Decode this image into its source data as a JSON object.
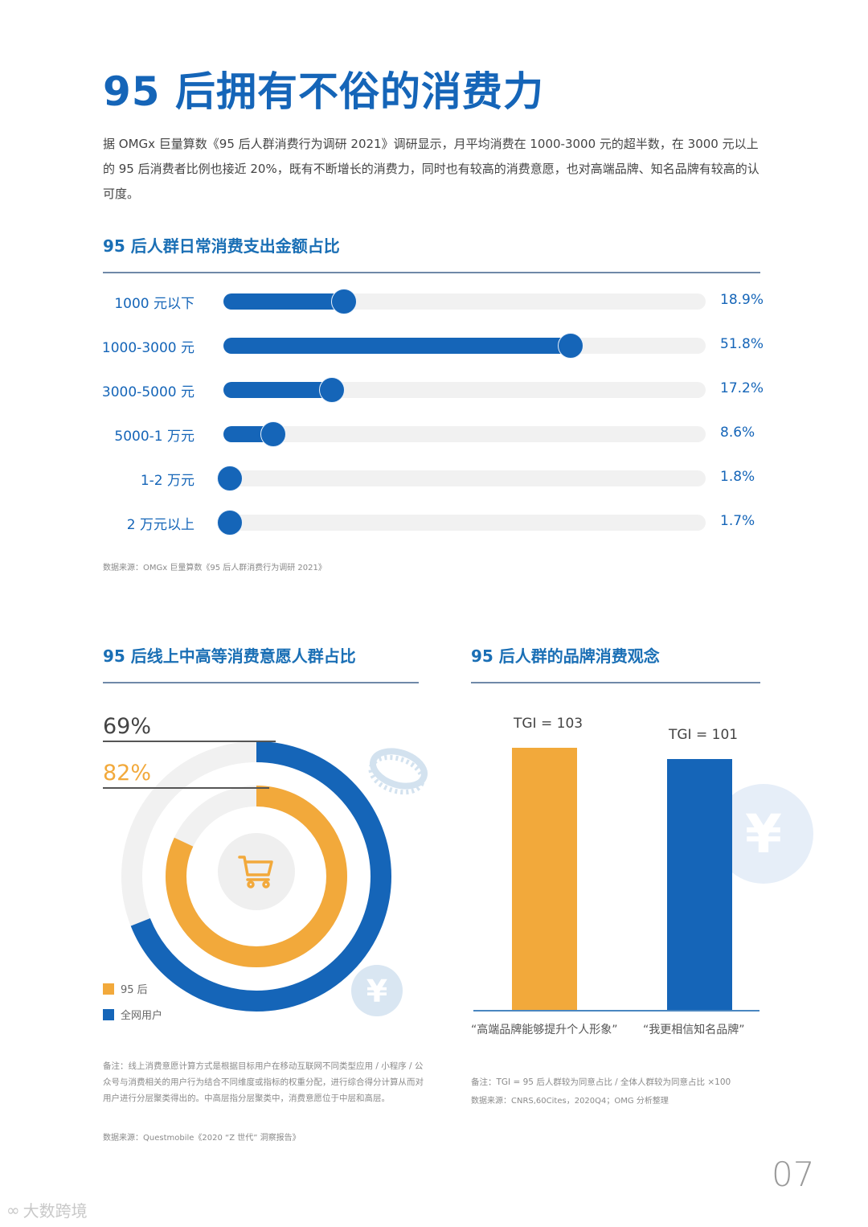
{
  "header": {
    "title": "95 后拥有不俗的消费力",
    "intro": "据 OMGx 巨量算数《95 后人群消费行为调研 2021》调研显示，月平均消费在 1000-3000 元的超半数，在 3000 元以上的 95 后消费者比例也接近 20%，既有不断增长的消费力，同时也有较高的消费意愿，也对高端品牌、知名品牌有较高的认可度。"
  },
  "section1": {
    "title": "95 后人群日常消费支出金额占比",
    "source": "数据来源：OMGx 巨量算数《95 后人群消费行为调研 2021》"
  },
  "section2": {
    "title": "95 后线上中高等消费意愿人群占比",
    "note": "备注：线上消费意愿计算方式是根据目标用户在移动互联网不同类型应用 / 小程序 / 公众号与消费相关的用户行为结合不同维度或指标的权重分配，进行综合得分计算从而对用户进行分层聚类得出的。中高层指分层聚类中，消费意愿位于中层和高层。",
    "source": "数据来源：Questmobile《2020 “Z 世代” 洞察报告》",
    "legend": [
      {
        "label": "95 后",
        "color": "#f2a93b"
      },
      {
        "label": "全网用户",
        "color": "#1565b8"
      }
    ],
    "outer_label": "69%",
    "inner_label": "82%"
  },
  "section3": {
    "title": "95 后人群的品牌消费观念",
    "note": "备注：TGI = 95 后人群较为同意占比 / 全体人群较为同意占比 ×100",
    "source": "数据来源：CNRS,60Cites，2020Q4；OMG 分析整理"
  },
  "footer": {
    "page_number": "07",
    "watermark": "大数跨境"
  },
  "colors": {
    "primary_blue": "#1565b8",
    "accent_orange": "#f2a93b",
    "track_gray": "#f1f1f1"
  },
  "chart_data": [
    {
      "type": "bar",
      "orientation": "horizontal",
      "title": "95 后人群日常消费支出金额占比",
      "categories": [
        "1000 元以下",
        "1000-3000 元",
        "3000-5000 元",
        "5000-1 万元",
        "1-2 万元",
        "2 万元以上"
      ],
      "values": [
        18.9,
        51.8,
        17.2,
        8.6,
        1.8,
        1.7
      ],
      "value_labels": [
        "18.9%",
        "51.8%",
        "17.2%",
        "8.6%",
        "1.8%",
        "1.7%"
      ],
      "unit": "%",
      "xlim": [
        0,
        70
      ]
    },
    {
      "type": "pie",
      "subtype": "concentric-donut",
      "title": "95 后线上中高等消费意愿人群占比",
      "series": [
        {
          "name": "全网用户",
          "value": 69,
          "label": "69%",
          "ring": "outer",
          "color": "#1565b8"
        },
        {
          "name": "95 后",
          "value": 82,
          "label": "82%",
          "ring": "inner",
          "color": "#f2a93b"
        }
      ],
      "unit": "%"
    },
    {
      "type": "bar",
      "title": "95 后人群的品牌消费观念",
      "categories": [
        "“高端品牌能够提升个人形象”",
        "“我更相信知名品牌”"
      ],
      "values": [
        103,
        101
      ],
      "value_labels": [
        "TGI = 103",
        "TGI = 101"
      ],
      "colors": [
        "#f2a93b",
        "#1565b8"
      ],
      "ylabel": "TGI",
      "grid": false
    }
  ]
}
